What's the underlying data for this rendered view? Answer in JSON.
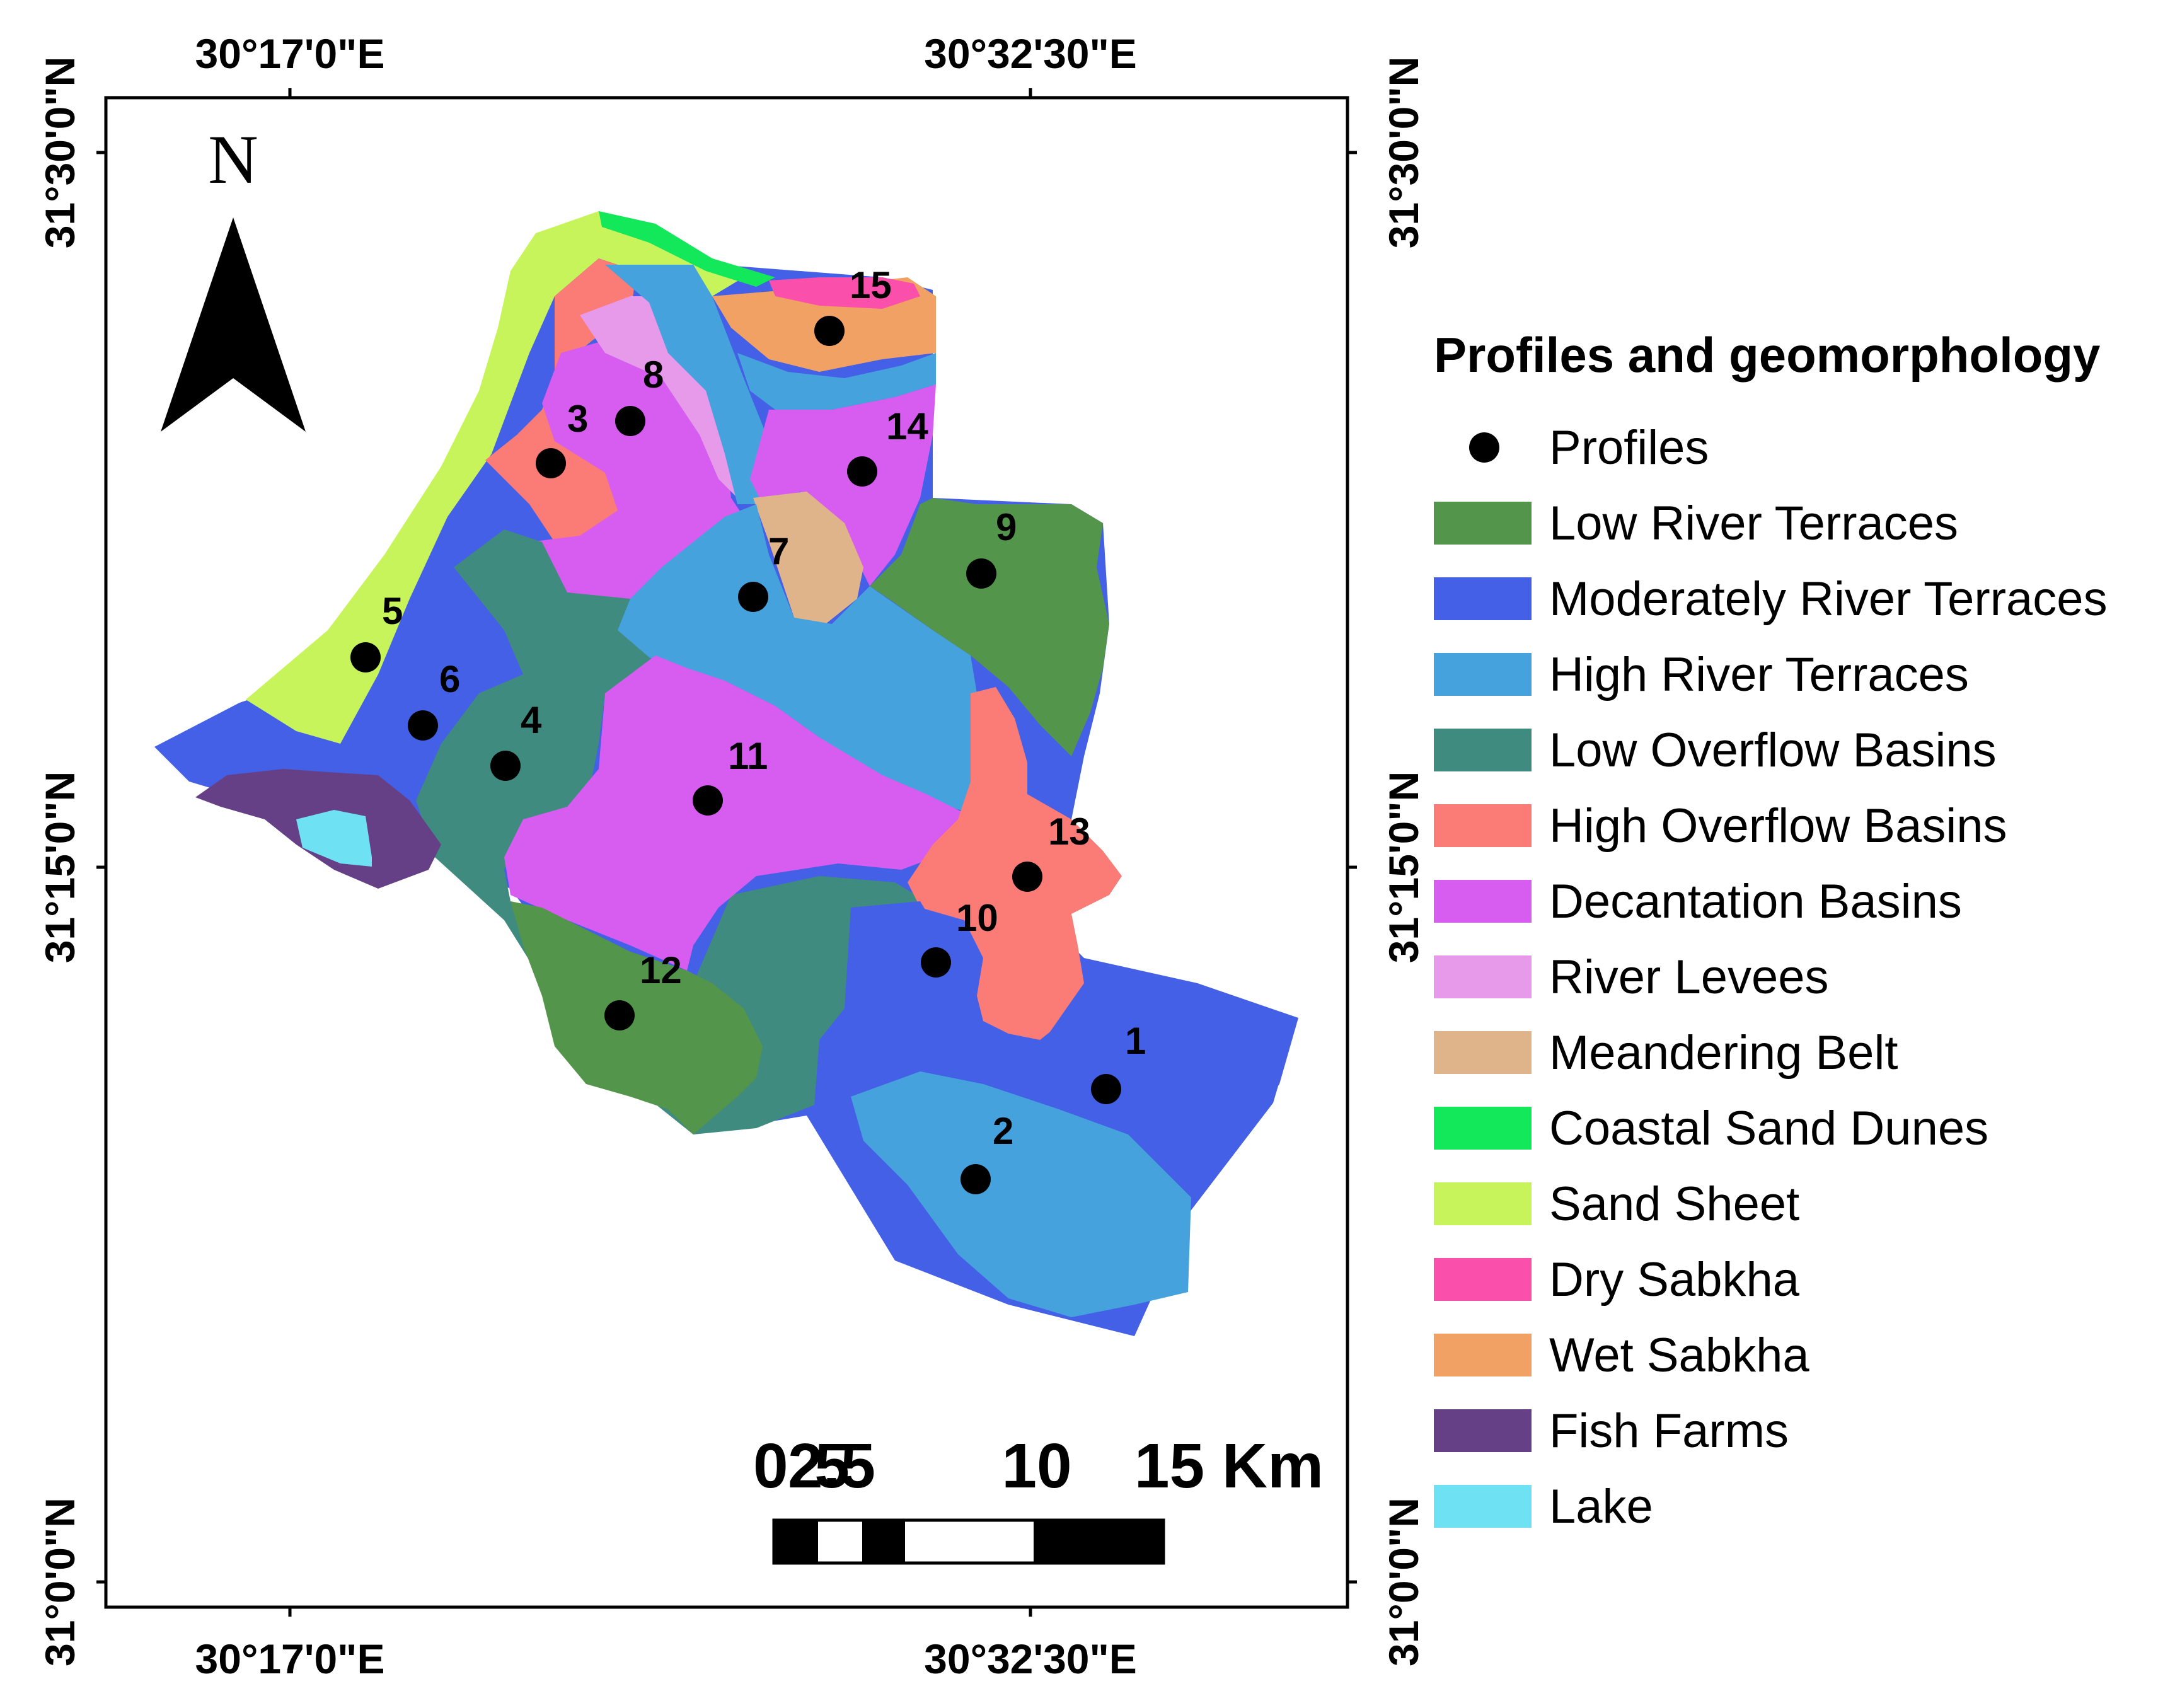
{
  "map": {
    "lon_labels": [
      "30°17'0\"E",
      "30°32'30\"E"
    ],
    "lat_labels": [
      "31°30'0\"N",
      "31°15'0\"N",
      "31°0'0\"N"
    ],
    "north_label": "N",
    "scale": {
      "labels": [
        "0",
        "2.5",
        "5",
        "10",
        "15 Km"
      ],
      "km_values": [
        0,
        2.5,
        5,
        10,
        15
      ]
    }
  },
  "legend": {
    "title": "Profiles and geomorphology",
    "items": [
      {
        "label": "Profiles",
        "symbol": "point",
        "color": "#000000"
      },
      {
        "label": "Low River Terraces",
        "symbol": "patch",
        "color": "#53954a"
      },
      {
        "label": "Moderately River Terraces",
        "symbol": "patch",
        "color": "#4460e6"
      },
      {
        "label": "High River Terraces",
        "symbol": "patch",
        "color": "#45a2dc"
      },
      {
        "label": "Low Overflow Basins",
        "symbol": "patch",
        "color": "#3f8b80"
      },
      {
        "label": "High Overflow Basins",
        "symbol": "patch",
        "color": "#fb7b76"
      },
      {
        "label": "Decantation Basins",
        "symbol": "patch",
        "color": "#d65def"
      },
      {
        "label": "River Levees",
        "symbol": "patch",
        "color": "#e69ae9"
      },
      {
        "label": "Meandering Belt",
        "symbol": "patch",
        "color": "#dfb48a"
      },
      {
        "label": "Coastal Sand Dunes",
        "symbol": "patch",
        "color": "#12e85a"
      },
      {
        "label": "Sand Sheet",
        "symbol": "patch",
        "color": "#c6f45a"
      },
      {
        "label": "Dry Sabkha",
        "symbol": "patch",
        "color": "#fa4fab"
      },
      {
        "label": "Wet Sabkha",
        "symbol": "patch",
        "color": "#f1a163"
      },
      {
        "label": "Fish Farms",
        "symbol": "patch",
        "color": "#654086"
      },
      {
        "label": "Lake",
        "symbol": "patch",
        "color": "#6ee1f3"
      }
    ]
  },
  "profiles": [
    {
      "id": "1"
    },
    {
      "id": "2"
    },
    {
      "id": "3"
    },
    {
      "id": "4"
    },
    {
      "id": "5"
    },
    {
      "id": "6"
    },
    {
      "id": "7"
    },
    {
      "id": "8"
    },
    {
      "id": "9"
    },
    {
      "id": "10"
    },
    {
      "id": "11"
    },
    {
      "id": "12"
    },
    {
      "id": "13"
    },
    {
      "id": "14"
    },
    {
      "id": "15"
    }
  ]
}
